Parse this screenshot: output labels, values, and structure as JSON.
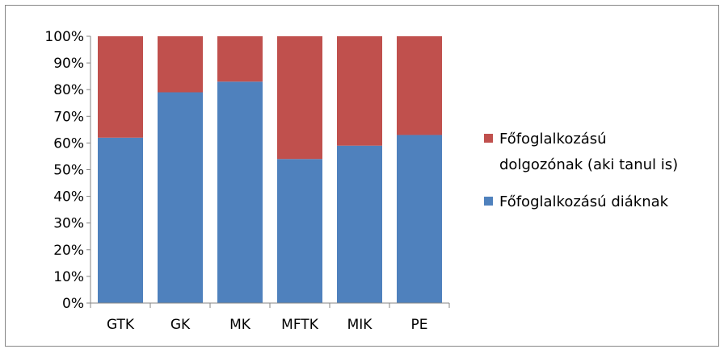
{
  "chart_data": {
    "type": "bar",
    "stacked": true,
    "percent": true,
    "categories": [
      "GTK",
      "GK",
      "MK",
      "MFTK",
      "MIK",
      "PE"
    ],
    "series": [
      {
        "name": "Főfoglalkozású diáknak",
        "color": "#4F81BD",
        "values": [
          62,
          79,
          83,
          54,
          59,
          63
        ]
      },
      {
        "name": "Főfoglalkozású dolgozónak (aki tanul is)",
        "color": "#C0504D",
        "values": [
          38,
          21,
          17,
          46,
          41,
          37
        ]
      }
    ],
    "legend": {
      "position": "right",
      "items": [
        {
          "line1": "Főfoglalkozású",
          "line2": "dolgozónak (aki tanul is)",
          "color": "#C0504D"
        },
        {
          "line1": "Főfoglalkozású diáknak",
          "line2": "",
          "color": "#4F81BD"
        }
      ]
    },
    "y_ticks": [
      "0%",
      "10%",
      "20%",
      "30%",
      "40%",
      "50%",
      "60%",
      "70%",
      "80%",
      "90%",
      "100%"
    ],
    "ylim": [
      0,
      100
    ],
    "grid": false
  }
}
